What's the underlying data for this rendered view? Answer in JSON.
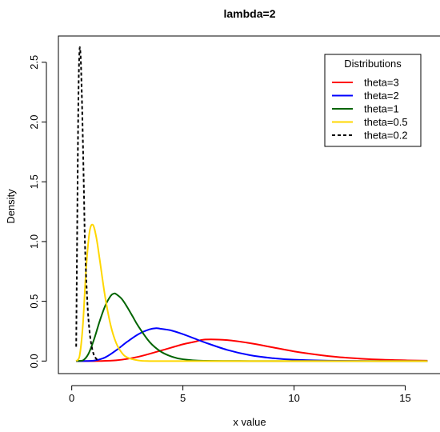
{
  "chart_data": {
    "type": "line",
    "title": "lambda=2",
    "xlabel": "x value",
    "ylabel": "Density",
    "xlim": [
      -0.6,
      16.6
    ],
    "ylim": [
      -0.105,
      2.72
    ],
    "xticks": [
      0,
      5,
      10,
      15
    ],
    "yticks": [
      0.0,
      0.5,
      1.0,
      1.5,
      2.0,
      2.5
    ],
    "xtick_labels": [
      "0",
      "5",
      "10",
      "15"
    ],
    "ytick_labels": [
      "0.0",
      "0.5",
      "1.0",
      "1.5",
      "2.0",
      "2.5"
    ],
    "grid": false,
    "legend": {
      "title": "Distributions",
      "placement": "top-right"
    },
    "series": [
      {
        "name": "theta=3",
        "color": "#ff0000",
        "dash": "solid",
        "x": [
          0.2,
          1,
          2,
          3,
          4,
          5,
          5.5,
          6,
          7,
          8,
          9,
          10,
          11,
          12,
          13,
          14,
          15,
          16
        ],
        "y": [
          0.0,
          0.0,
          0.006,
          0.036,
          0.087,
          0.14,
          0.16,
          0.18,
          0.175,
          0.15,
          0.116,
          0.081,
          0.054,
          0.033,
          0.02,
          0.011,
          0.006,
          0.003
        ]
      },
      {
        "name": "theta=2",
        "color": "#0000ff",
        "dash": "solid",
        "x": [
          0.2,
          0.5,
          1,
          1.5,
          2,
          2.5,
          3,
          3.5,
          3.8,
          4,
          4.5,
          5,
          5.5,
          6,
          7,
          8,
          9,
          10,
          12,
          14,
          16
        ],
        "y": [
          0.0,
          0.0,
          0.004,
          0.03,
          0.09,
          0.162,
          0.225,
          0.265,
          0.275,
          0.27,
          0.255,
          0.225,
          0.19,
          0.155,
          0.093,
          0.05,
          0.025,
          0.011,
          0.002,
          0.0,
          0.0
        ]
      },
      {
        "name": "theta=1",
        "color": "#006400",
        "dash": "solid",
        "x": [
          0.2,
          0.5,
          0.75,
          1,
          1.25,
          1.5,
          1.75,
          1.9,
          2,
          2.25,
          2.5,
          2.75,
          3,
          3.5,
          4,
          4.5,
          5,
          6,
          8,
          10,
          16
        ],
        "y": [
          0.0,
          0.005,
          0.06,
          0.18,
          0.33,
          0.46,
          0.545,
          0.565,
          0.56,
          0.52,
          0.45,
          0.37,
          0.29,
          0.16,
          0.08,
          0.037,
          0.015,
          0.002,
          0.0,
          0.0,
          0.0
        ]
      },
      {
        "name": "theta=0.5",
        "color": "#ffd700",
        "dash": "solid",
        "x": [
          0.2,
          0.35,
          0.5,
          0.65,
          0.8,
          0.95,
          1.1,
          1.25,
          1.5,
          1.75,
          2,
          2.25,
          2.5,
          3,
          3.5,
          4,
          5,
          6,
          8,
          10,
          16
        ],
        "y": [
          0.0,
          0.04,
          0.3,
          0.78,
          1.08,
          1.14,
          1.04,
          0.86,
          0.54,
          0.3,
          0.15,
          0.07,
          0.03,
          0.005,
          0.0,
          0.0,
          0.0,
          0.0,
          0.0,
          0.0,
          0.0
        ]
      },
      {
        "name": "theta=0.2",
        "color": "#000000",
        "dash": "dashed",
        "x": [
          0.2,
          0.25,
          0.3,
          0.35,
          0.4,
          0.45,
          0.5,
          0.55,
          0.6,
          0.7,
          0.8,
          0.9,
          1.0,
          1.1,
          1.2
        ],
        "y": [
          0.12,
          1.2,
          2.2,
          2.6,
          2.55,
          2.25,
          1.85,
          1.4,
          0.95,
          0.5,
          0.25,
          0.12,
          0.05,
          0.02,
          0.005
        ]
      }
    ]
  }
}
